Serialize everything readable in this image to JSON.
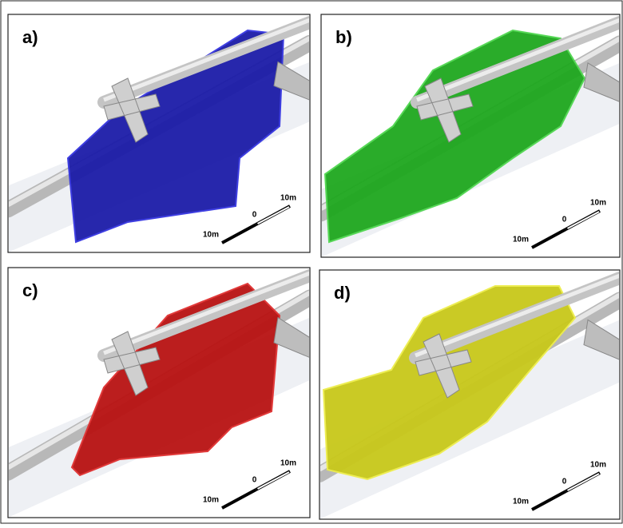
{
  "panels": [
    {
      "label": "a)",
      "scale": {
        "left": "10m",
        "zero": "0",
        "right": "10m"
      }
    },
    {
      "label": "b)",
      "scale": {
        "left": "10m",
        "zero": "0",
        "right": "10m"
      }
    },
    {
      "label": "c)",
      "scale": {
        "left": "10m",
        "zero": "0",
        "right": "10m"
      }
    },
    {
      "label": "d)",
      "scale": {
        "left": "10m",
        "zero": "0",
        "right": "10m"
      }
    }
  ]
}
